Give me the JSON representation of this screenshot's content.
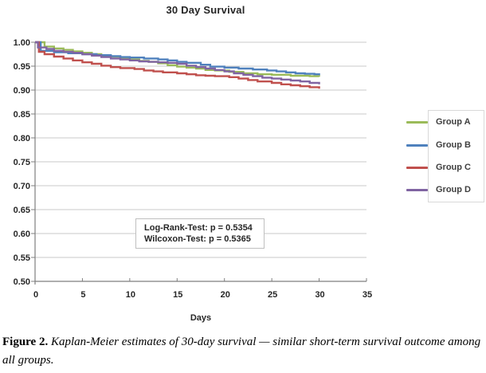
{
  "figure": {
    "caption_label": "Figure 2.",
    "caption_text": "Kaplan-Meier estimates of 30-day survival — similar short-term survival outcome among all groups."
  },
  "chart_data": {
    "type": "line",
    "subtype": "kaplan-meier-step-survival",
    "title": "30 Day Survival",
    "xlabel": "Days",
    "ylabel": "",
    "xlim": [
      0,
      35
    ],
    "ylim": [
      0.5,
      1.0
    ],
    "xticks": [
      0,
      5,
      10,
      15,
      20,
      25,
      30,
      35
    ],
    "ytick_labels": [
      "1.00",
      "0.95",
      "0.90",
      "0.85",
      "0.80",
      "0.75",
      "0.70",
      "0.65",
      "0.60",
      "0.55",
      "0.50"
    ],
    "grid": "horizontal",
    "legend_position": "right",
    "colors": {
      "gridline": "#c9c9c9",
      "axis": "#7f7f7f",
      "tick_text": "#262626"
    },
    "annotations": [
      "Log-Rank-Test: p = 0.5354",
      "Wilcoxon-Test: p = 0.5365"
    ],
    "series": [
      {
        "name": "Group A",
        "color": "#9BBB59",
        "points": [
          [
            0,
            1.0
          ],
          [
            1,
            0.991
          ],
          [
            2,
            0.987
          ],
          [
            3,
            0.984
          ],
          [
            4,
            0.981
          ],
          [
            5,
            0.978
          ],
          [
            6,
            0.975
          ],
          [
            7,
            0.972
          ],
          [
            8,
            0.97
          ],
          [
            9,
            0.967
          ],
          [
            10,
            0.964
          ],
          [
            11,
            0.961
          ],
          [
            12,
            0.959
          ],
          [
            13,
            0.956
          ],
          [
            14,
            0.952
          ],
          [
            15,
            0.949
          ],
          [
            16,
            0.947
          ],
          [
            17,
            0.945
          ],
          [
            18,
            0.942
          ],
          [
            19,
            0.941
          ],
          [
            20.5,
            0.938
          ],
          [
            22,
            0.935
          ],
          [
            23.5,
            0.933
          ],
          [
            25,
            0.932
          ],
          [
            27,
            0.93
          ],
          [
            29,
            0.929
          ],
          [
            30,
            0.928
          ]
        ]
      },
      {
        "name": "Group B",
        "color": "#4F81BD",
        "points": [
          [
            0,
            1.0
          ],
          [
            0.6,
            0.982
          ],
          [
            2,
            0.979
          ],
          [
            3.5,
            0.977
          ],
          [
            5,
            0.975
          ],
          [
            6.5,
            0.973
          ],
          [
            8,
            0.971
          ],
          [
            9,
            0.969
          ],
          [
            10,
            0.968
          ],
          [
            11.5,
            0.966
          ],
          [
            13,
            0.964
          ],
          [
            14,
            0.962
          ],
          [
            15,
            0.959
          ],
          [
            16,
            0.957
          ],
          [
            17.5,
            0.953
          ],
          [
            18.5,
            0.949
          ],
          [
            20,
            0.947
          ],
          [
            21.5,
            0.945
          ],
          [
            23,
            0.943
          ],
          [
            24.5,
            0.941
          ],
          [
            25.5,
            0.939
          ],
          [
            26.5,
            0.937
          ],
          [
            27.5,
            0.935
          ],
          [
            28.5,
            0.934
          ],
          [
            29.5,
            0.933
          ],
          [
            30,
            0.931
          ]
        ]
      },
      {
        "name": "Group C",
        "color": "#C0504D",
        "points": [
          [
            0,
            1.0
          ],
          [
            0.4,
            0.98
          ],
          [
            1,
            0.975
          ],
          [
            2,
            0.97
          ],
          [
            3,
            0.966
          ],
          [
            4,
            0.962
          ],
          [
            5,
            0.958
          ],
          [
            6,
            0.955
          ],
          [
            7,
            0.951
          ],
          [
            8,
            0.948
          ],
          [
            9,
            0.946
          ],
          [
            10.5,
            0.944
          ],
          [
            11.5,
            0.941
          ],
          [
            12.5,
            0.939
          ],
          [
            13.5,
            0.937
          ],
          [
            15,
            0.935
          ],
          [
            16,
            0.933
          ],
          [
            17,
            0.931
          ],
          [
            18,
            0.93
          ],
          [
            19,
            0.929
          ],
          [
            20.5,
            0.927
          ],
          [
            21.5,
            0.924
          ],
          [
            22.5,
            0.921
          ],
          [
            23.5,
            0.918
          ],
          [
            25,
            0.915
          ],
          [
            26,
            0.912
          ],
          [
            27,
            0.91
          ],
          [
            28,
            0.908
          ],
          [
            29,
            0.906
          ],
          [
            30,
            0.903
          ]
        ]
      },
      {
        "name": "Group D",
        "color": "#8064A2",
        "points": [
          [
            0,
            1.0
          ],
          [
            0.3,
            0.989
          ],
          [
            1.2,
            0.986
          ],
          [
            2,
            0.982
          ],
          [
            3,
            0.98
          ],
          [
            4,
            0.978
          ],
          [
            5,
            0.975
          ],
          [
            6,
            0.972
          ],
          [
            7,
            0.969
          ],
          [
            8,
            0.966
          ],
          [
            9,
            0.964
          ],
          [
            10,
            0.962
          ],
          [
            11,
            0.96
          ],
          [
            12,
            0.959
          ],
          [
            13,
            0.958
          ],
          [
            14,
            0.957
          ],
          [
            15,
            0.955
          ],
          [
            16,
            0.951
          ],
          [
            17,
            0.948
          ],
          [
            18,
            0.945
          ],
          [
            19,
            0.942
          ],
          [
            20,
            0.939
          ],
          [
            21,
            0.935
          ],
          [
            22,
            0.932
          ],
          [
            23,
            0.929
          ],
          [
            24,
            0.926
          ],
          [
            25,
            0.924
          ],
          [
            26,
            0.922
          ],
          [
            27,
            0.92
          ],
          [
            28,
            0.918
          ],
          [
            29,
            0.915
          ],
          [
            30,
            0.912
          ]
        ]
      }
    ]
  }
}
